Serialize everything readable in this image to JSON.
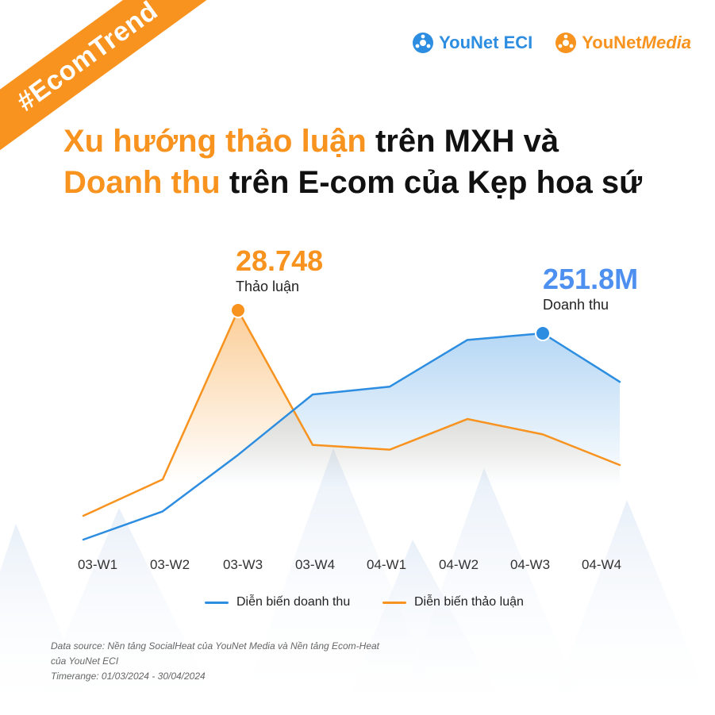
{
  "tag": "#EcomTrend",
  "logos": [
    {
      "name": "YouNet ECI"
    },
    {
      "name_part1": "YouNet",
      "name_part2": "Media"
    }
  ],
  "title": {
    "line1_highlight": "Xu hướng thảo luận",
    "line1_rest": " trên MXH và",
    "line2_highlight": "Doanh thu",
    "line2_rest": " trên E-com của Kẹp hoa sứ"
  },
  "colors": {
    "orange": "#f7931e",
    "blue": "#2d8de0",
    "revenue_label": "#4d90f0"
  },
  "chart_data": {
    "type": "line",
    "categories": [
      "03-W1",
      "03-W2",
      "03-W3",
      "03-W4",
      "04-W1",
      "04-W2",
      "04-W3",
      "04-W4"
    ],
    "series": [
      {
        "name": "Diễn biến doanh thu",
        "color": "#2d8de0",
        "values": [
          40,
          69,
          127,
          189,
          197,
          245,
          251.8,
          202
        ]
      },
      {
        "name": "Diễn biến thảo luận",
        "color": "#f7931e",
        "values": [
          7.3,
          11.1,
          28.748,
          14.7,
          14.2,
          17.4,
          15.8,
          12.6
        ]
      }
    ],
    "annotations": [
      {
        "series": 1,
        "index": 2,
        "value": "28.748",
        "label": "Thảo luận"
      },
      {
        "series": 0,
        "index": 6,
        "value": "251.8M",
        "label": "Doanh thu"
      }
    ],
    "legend_position": "bottom",
    "grid": false
  },
  "footer": {
    "source": "Data source: Nền tảng SocialHeat của YouNet Media và Nền tảng Ecom-Heat của YouNet ECI",
    "timerange": "Timerange: 01/03/2024 - 30/04/2024"
  }
}
